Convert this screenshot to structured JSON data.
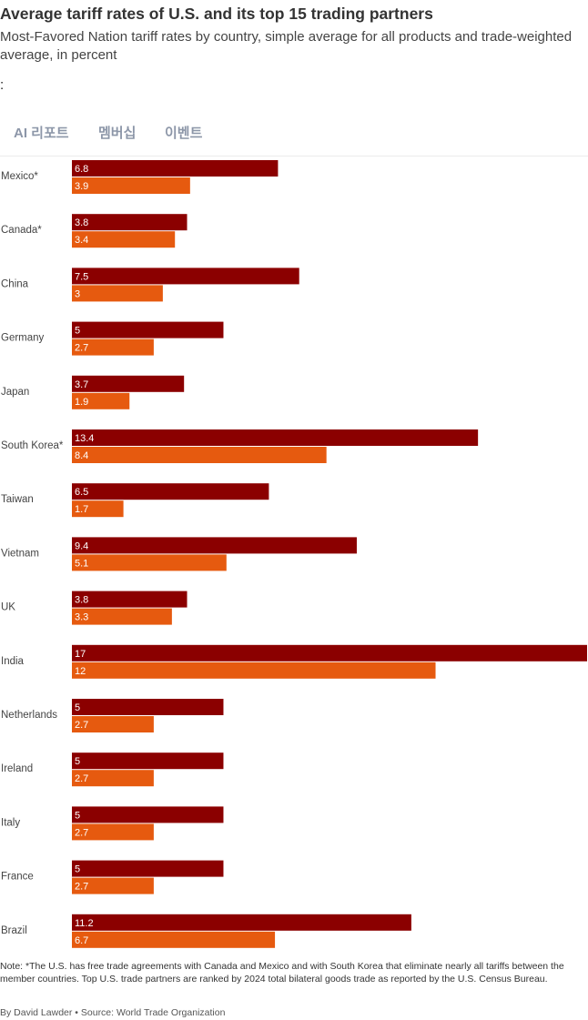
{
  "header": {
    "title": "Average tariff rates of U.S. and its top 15 trading partners",
    "subtitle": "Most-Favored Nation tariff rates by country, simple average for all products and trade-weighted average, in percent",
    "stray_mark": ":"
  },
  "nav": {
    "items": [
      "AI 리포트",
      "멤버십",
      "이벤트"
    ]
  },
  "colors": {
    "simple_average": "#8b0000",
    "trade_weighted": "#e65a0f",
    "label_text": "#444444",
    "value_text": "#ffffff"
  },
  "chart_data": {
    "type": "bar",
    "orientation": "horizontal",
    "categories": [
      "Mexico*",
      "Canada*",
      "China",
      "Germany",
      "Japan",
      "South Korea*",
      "Taiwan",
      "Vietnam",
      "UK",
      "India",
      "Netherlands",
      "Ireland",
      "Italy",
      "France",
      "Brazil"
    ],
    "series": [
      {
        "values": [
          6.8,
          3.8,
          7.5,
          5,
          3.7,
          13.4,
          6.5,
          9.4,
          3.8,
          17,
          5,
          5,
          5,
          5,
          11.2
        ]
      },
      {
        "values": [
          3.9,
          3.4,
          3,
          2.7,
          1.9,
          8.4,
          1.7,
          5.1,
          3.3,
          12,
          2.7,
          2.7,
          2.7,
          2.7,
          6.7
        ]
      }
    ],
    "xlim": [
      0,
      17
    ],
    "grid": false,
    "legend": "none"
  },
  "footer": {
    "note": "Note: *The U.S. has free trade agreements with Canada and Mexico and with South Korea that eliminate nearly all tariffs between the member countries. Top U.S. trade partners are ranked by 2024 total bilateral goods trade as reported by the U.S. Census Bureau.",
    "byline": "By David Lawder • Source: World Trade Organization"
  }
}
